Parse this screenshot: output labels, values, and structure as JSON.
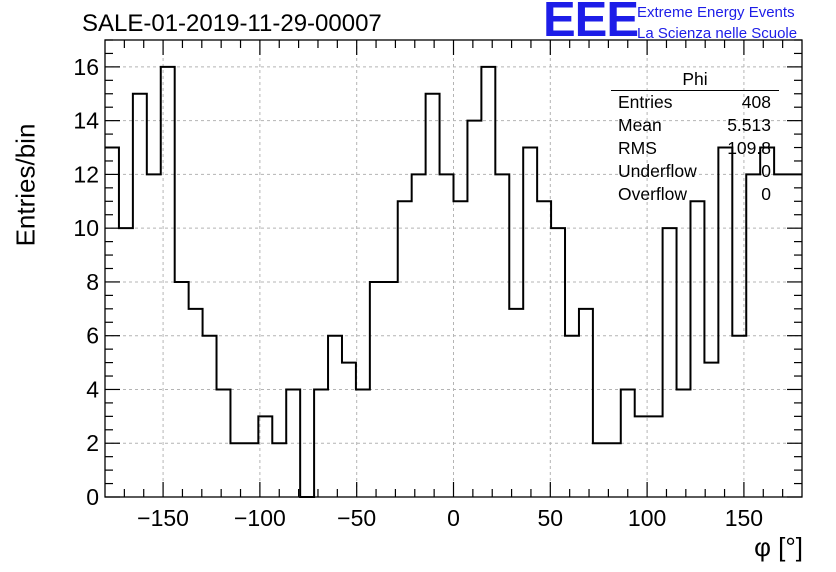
{
  "chart_data": {
    "type": "histogram",
    "title": "SALE-01-2019-11-29-00007",
    "xlabel": "φ [°]",
    "ylabel": "Entries/bin",
    "xlim": [
      -180,
      180
    ],
    "ylim": [
      0,
      17
    ],
    "x_ticks": [
      -150,
      -100,
      -50,
      0,
      50,
      100,
      150
    ],
    "y_ticks": [
      0,
      2,
      4,
      6,
      8,
      10,
      12,
      14,
      16
    ],
    "grid": true,
    "bin_width": 7.2,
    "values": [
      13,
      10,
      15,
      12,
      16,
      8,
      7,
      6,
      4,
      2,
      2,
      3,
      2,
      4,
      0,
      4,
      6,
      5,
      4,
      8,
      8,
      11,
      12,
      15,
      12,
      11,
      14,
      16,
      12,
      7,
      13,
      11,
      10,
      6,
      7,
      2,
      2,
      4,
      3,
      3,
      10,
      4,
      11,
      5,
      13,
      6,
      12,
      13,
      12,
      12
    ],
    "stats_box": {
      "title": "Phi",
      "rows": [
        {
          "label": "Entries",
          "value": "408"
        },
        {
          "label": "Mean",
          "value": "5.513"
        },
        {
          "label": "RMS",
          "value": "109.8"
        },
        {
          "label": "Underflow",
          "value": "0"
        },
        {
          "label": "Overflow",
          "value": "0"
        }
      ]
    }
  },
  "branding": {
    "logo": "EEE",
    "line1": "Extreme Energy Events",
    "line2": "La Scienza nelle Scuole"
  },
  "colors": {
    "histogram": "#000000",
    "grid": "#b4b4b4",
    "brand": "#1d1de8"
  }
}
